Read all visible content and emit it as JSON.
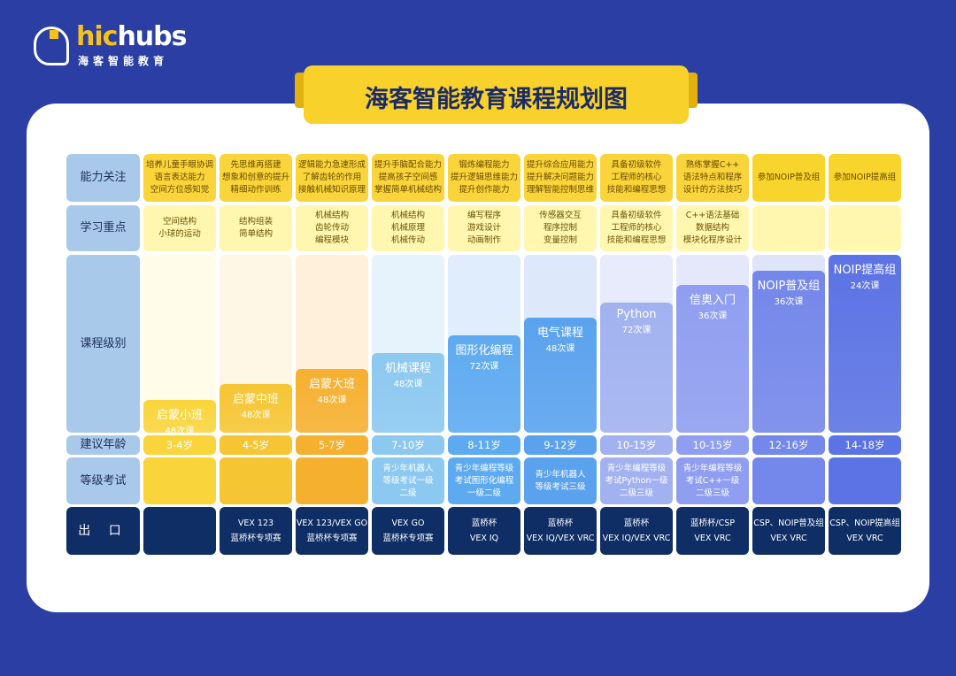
{
  "logo": {
    "word_a": "hic",
    "word_b": "hubs",
    "sub": "海客智能教育"
  },
  "title": "海客智能教育课程规划图",
  "row_labels": {
    "ability": "能力关注",
    "focus": "学习重点",
    "level": "课程级别",
    "age": "建议年龄",
    "exam": "等级考试",
    "output": "出 口"
  },
  "colors": {
    "background": "#2a3ea3",
    "title_tab": "#f8d22a",
    "label_column": "#a9c9ea",
    "output_row": "#0f2e66"
  },
  "columns": [
    {
      "ability": "培养儿童手眼协调\n语言表达能力\n空间方位感知觉",
      "focus": "空间结构\n小球的运动",
      "course": "启蒙小班",
      "lessons": "48次课",
      "age": "3-4岁",
      "exam": "",
      "output": "",
      "color": "#f9d43b",
      "light": "#fffdea"
    },
    {
      "ability": "先思维再搭建\n想象和创意的提升\n精细动作训练",
      "focus": "结构组装\n简单结构",
      "course": "启蒙中班",
      "lessons": "48次课",
      "age": "4-5岁",
      "exam": "",
      "output": "VEX 123\n蓝桥杯专项赛",
      "color": "#f6c533",
      "light": "#fff7e6"
    },
    {
      "ability": "逻辑能力急速形成\n了解齿轮的作用\n接触机械知识原理",
      "focus": "机械结构\n齿轮传动\n编程模块",
      "course": "启蒙大班",
      "lessons": "48次课",
      "age": "5-7岁",
      "exam": "",
      "output": "VEX 123/VEX GO\n蓝桥杯专项赛",
      "color": "#f6b030",
      "light": "#fff0db"
    },
    {
      "ability": "提升手脑配合能力\n提高孩子空间感\n掌握简单机械结构",
      "focus": "机械结构\n机械原理\n机械传动",
      "course": "机械课程",
      "lessons": "48次课",
      "age": "7-10岁",
      "exam": "青少年机器人\n等级考试一级\n二级",
      "output": "VEX GO\n蓝桥杯专项赛",
      "color": "#8cc8f0",
      "light": "#e6f3fd"
    },
    {
      "ability": "锻炼编程能力\n提升逻辑思维能力\n提升创作能力",
      "focus": "编写程序\n游戏设计\n动画制作",
      "course": "图形化编程",
      "lessons": "72次课",
      "age": "8-11岁",
      "exam": "青少年编程等级\n考试图形化编程\n一级二级",
      "output": "蓝桥杯\nVEX IQ",
      "color": "#5eaaf0",
      "light": "#e0edfc"
    },
    {
      "ability": "提升综合应用能力\n提升解决问题能力\n理解智能控制思维",
      "focus": "传感器交互\n程序控制\n变量控制",
      "course": "电气课程",
      "lessons": "48次课",
      "age": "9-12岁",
      "exam": "青少年机器人\n等级考试三级",
      "output": "蓝桥杯\nVEX IQ/VEX VRC",
      "color": "#5aa2ee",
      "light": "#dde9fa"
    },
    {
      "ability": "具备初级软件\n工程师的核心\n技能和编程思想",
      "focus": "具备初级软件\n工程师的核心\n技能和编程思想",
      "course": "Python",
      "lessons": "72次课",
      "age": "10-15岁",
      "exam": "青少年编程等级\n考试Python一级\n二级三级",
      "output": "蓝桥杯\nVEX IQ/VEX VRC",
      "color": "#a2b2f0",
      "light": "#e7ebfb"
    },
    {
      "ability": "熟练掌握C++\n语法特点和程序\n设计的方法技巧",
      "focus": "C++语法基础\n数据结构\n模块化程序设计",
      "course": "信奥入门",
      "lessons": "36次课",
      "age": "10-15岁",
      "exam": "青少年编程等级\n考试C++一级\n二级三级",
      "output": "蓝桥杯/CSP\nVEX VRC",
      "color": "#8f9ef0",
      "light": "#e4e8fa"
    },
    {
      "ability": "参加NOIP普及组",
      "focus": "",
      "course": "NOIP普及组",
      "lessons": "36次课",
      "age": "12-16岁",
      "exam": "",
      "output": "CSP、NOIP普及组\nVEX VRC",
      "color": "#7487ea",
      "light": "#dfe4f9"
    },
    {
      "ability": "参加NOIP提高组",
      "focus": "",
      "course": "NOIP提高组",
      "lessons": "24次课",
      "age": "14-18岁",
      "exam": "",
      "output": "CSP、NOIP提高组\nVEX VRC",
      "color": "#5b73e4",
      "light": "#dfe4f9"
    }
  ]
}
